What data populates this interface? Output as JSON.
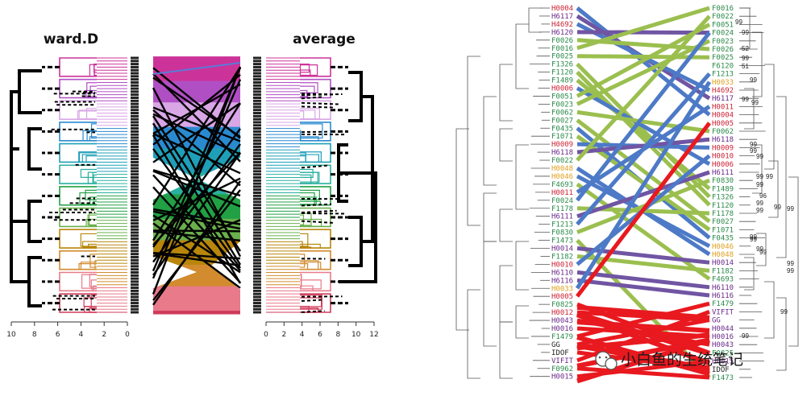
{
  "left_panel": {
    "left_title": "ward.D",
    "right_title": "average",
    "left_axis_ticks": [
      "10",
      "8",
      "6",
      "4",
      "2",
      "0"
    ],
    "right_axis_ticks": [
      "0",
      "2",
      "4",
      "6",
      "8",
      "10",
      "12"
    ]
  },
  "right_panel": {
    "left_labels": [
      {
        "t": "H0004",
        "c": "#cc2233"
      },
      {
        "t": "H6117",
        "c": "#6a2a8a"
      },
      {
        "t": "H4692",
        "c": "#cc2233"
      },
      {
        "t": "H6120",
        "c": "#6a2a8a"
      },
      {
        "t": "F0026",
        "c": "#2a8a4a"
      },
      {
        "t": "F0016",
        "c": "#2a8a4a"
      },
      {
        "t": "F0025",
        "c": "#2a8a4a"
      },
      {
        "t": "F1326",
        "c": "#2a8a4a"
      },
      {
        "t": "F1120",
        "c": "#2a8a4a"
      },
      {
        "t": "F1489",
        "c": "#2a8a4a"
      },
      {
        "t": "H0006",
        "c": "#cc2233"
      },
      {
        "t": "F0051",
        "c": "#2a8a4a"
      },
      {
        "t": "F0023",
        "c": "#2a8a4a"
      },
      {
        "t": "F0062",
        "c": "#2a8a4a"
      },
      {
        "t": "F0027",
        "c": "#2a8a4a"
      },
      {
        "t": "F0435",
        "c": "#2a8a4a"
      },
      {
        "t": "F1071",
        "c": "#2a8a4a"
      },
      {
        "t": "H0009",
        "c": "#cc2233"
      },
      {
        "t": "H6118",
        "c": "#6a2a8a"
      },
      {
        "t": "F0022",
        "c": "#2a8a4a"
      },
      {
        "t": "H0048",
        "c": "#e0a020"
      },
      {
        "t": "H0046",
        "c": "#e0a020"
      },
      {
        "t": "F4693",
        "c": "#2a8a4a"
      },
      {
        "t": "H0011",
        "c": "#cc2233"
      },
      {
        "t": "F0024",
        "c": "#2a8a4a"
      },
      {
        "t": "F1178",
        "c": "#2a8a4a"
      },
      {
        "t": "H6111",
        "c": "#6a2a8a"
      },
      {
        "t": "F1213",
        "c": "#2a8a4a"
      },
      {
        "t": "F0830",
        "c": "#2a8a4a"
      },
      {
        "t": "F1473",
        "c": "#2a8a4a"
      },
      {
        "t": "H0014",
        "c": "#6a2a8a"
      },
      {
        "t": "F1182",
        "c": "#2a8a4a"
      },
      {
        "t": "H0010",
        "c": "#cc2233"
      },
      {
        "t": "H6110",
        "c": "#6a2a8a"
      },
      {
        "t": "H6116",
        "c": "#6a2a8a"
      },
      {
        "t": "H0033",
        "c": "#e0a020"
      },
      {
        "t": "H0005",
        "c": "#cc2233"
      },
      {
        "t": "F0825",
        "c": "#2a8a4a"
      },
      {
        "t": "H0012",
        "c": "#cc2233"
      },
      {
        "t": "H0043",
        "c": "#6a2a8a"
      },
      {
        "t": "H0016",
        "c": "#6a2a8a"
      },
      {
        "t": "F1479",
        "c": "#2a8a4a"
      },
      {
        "t": "GG",
        "c": "#222222"
      },
      {
        "t": "IDOF",
        "c": "#222222"
      },
      {
        "t": "VIFIT",
        "c": "#6a2a8a"
      },
      {
        "t": "F0962",
        "c": "#2a8a4a"
      },
      {
        "t": "H0015",
        "c": "#6a2a8a"
      }
    ],
    "right_labels": [
      {
        "t": "F0016",
        "c": "#2a8a4a"
      },
      {
        "t": "F0022",
        "c": "#2a8a4a"
      },
      {
        "t": "F0051",
        "c": "#2a8a4a"
      },
      {
        "t": "F0024",
        "c": "#2a8a4a"
      },
      {
        "t": "F0023",
        "c": "#2a8a4a"
      },
      {
        "t": "F0026",
        "c": "#2a8a4a"
      },
      {
        "t": "F0025",
        "c": "#2a8a4a"
      },
      {
        "t": "F6120",
        "c": "#2a8a4a"
      },
      {
        "t": "F1213",
        "c": "#2a8a4a"
      },
      {
        "t": "H0033",
        "c": "#e0a020"
      },
      {
        "t": "H4692",
        "c": "#cc2233"
      },
      {
        "t": "H6117",
        "c": "#6a2a8a"
      },
      {
        "t": "H0011",
        "c": "#cc2233"
      },
      {
        "t": "H0004",
        "c": "#cc2233"
      },
      {
        "t": "H0005",
        "c": "#cc2233"
      },
      {
        "t": "F0062",
        "c": "#2a8a4a"
      },
      {
        "t": "H6118",
        "c": "#6a2a8a"
      },
      {
        "t": "H0009",
        "c": "#cc2233"
      },
      {
        "t": "H0010",
        "c": "#cc2233"
      },
      {
        "t": "H0006",
        "c": "#cc2233"
      },
      {
        "t": "H6111",
        "c": "#6a2a8a"
      },
      {
        "t": "F0830",
        "c": "#2a8a4a"
      },
      {
        "t": "F1489",
        "c": "#2a8a4a"
      },
      {
        "t": "F1326",
        "c": "#2a8a4a"
      },
      {
        "t": "F1120",
        "c": "#2a8a4a"
      },
      {
        "t": "F1178",
        "c": "#2a8a4a"
      },
      {
        "t": "F0027",
        "c": "#2a8a4a"
      },
      {
        "t": "F1071",
        "c": "#2a8a4a"
      },
      {
        "t": "F0435",
        "c": "#2a8a4a"
      },
      {
        "t": "H0046",
        "c": "#e0a020"
      },
      {
        "t": "H0048",
        "c": "#e0a020"
      },
      {
        "t": "H0014",
        "c": "#6a2a8a"
      },
      {
        "t": "F1182",
        "c": "#2a8a4a"
      },
      {
        "t": "F4693",
        "c": "#2a8a4a"
      },
      {
        "t": "H6110",
        "c": "#6a2a8a"
      },
      {
        "t": "H6116",
        "c": "#6a2a8a"
      },
      {
        "t": "F1479",
        "c": "#2a8a4a"
      },
      {
        "t": "VIFIT",
        "c": "#6a2a8a"
      },
      {
        "t": "GG",
        "c": "#6a2a8a"
      },
      {
        "t": "H0044",
        "c": "#6a2a8a"
      },
      {
        "t": "H0016",
        "c": "#6a2a8a"
      },
      {
        "t": "H0043",
        "c": "#6a2a8a"
      },
      {
        "t": "F0825",
        "c": "#2a8a4a"
      },
      {
        "t": "H0015",
        "c": "#6a2a8a"
      },
      {
        "t": "IDOF",
        "c": "#222222"
      },
      {
        "t": "F1473",
        "c": "#2a8a4a"
      }
    ],
    "bootstrap_values": [
      "99",
      "99",
      "52",
      "99",
      "51",
      "99",
      "99",
      "99",
      "99",
      "99",
      "99",
      "99",
      "99",
      "96",
      "99",
      "99",
      "99",
      "99",
      "99",
      "99",
      "99",
      "99",
      "99",
      "99",
      "99",
      "99",
      "99"
    ]
  },
  "watermark": {
    "text": "小白鱼的生统笔记",
    "icon": "wechat-icon"
  }
}
